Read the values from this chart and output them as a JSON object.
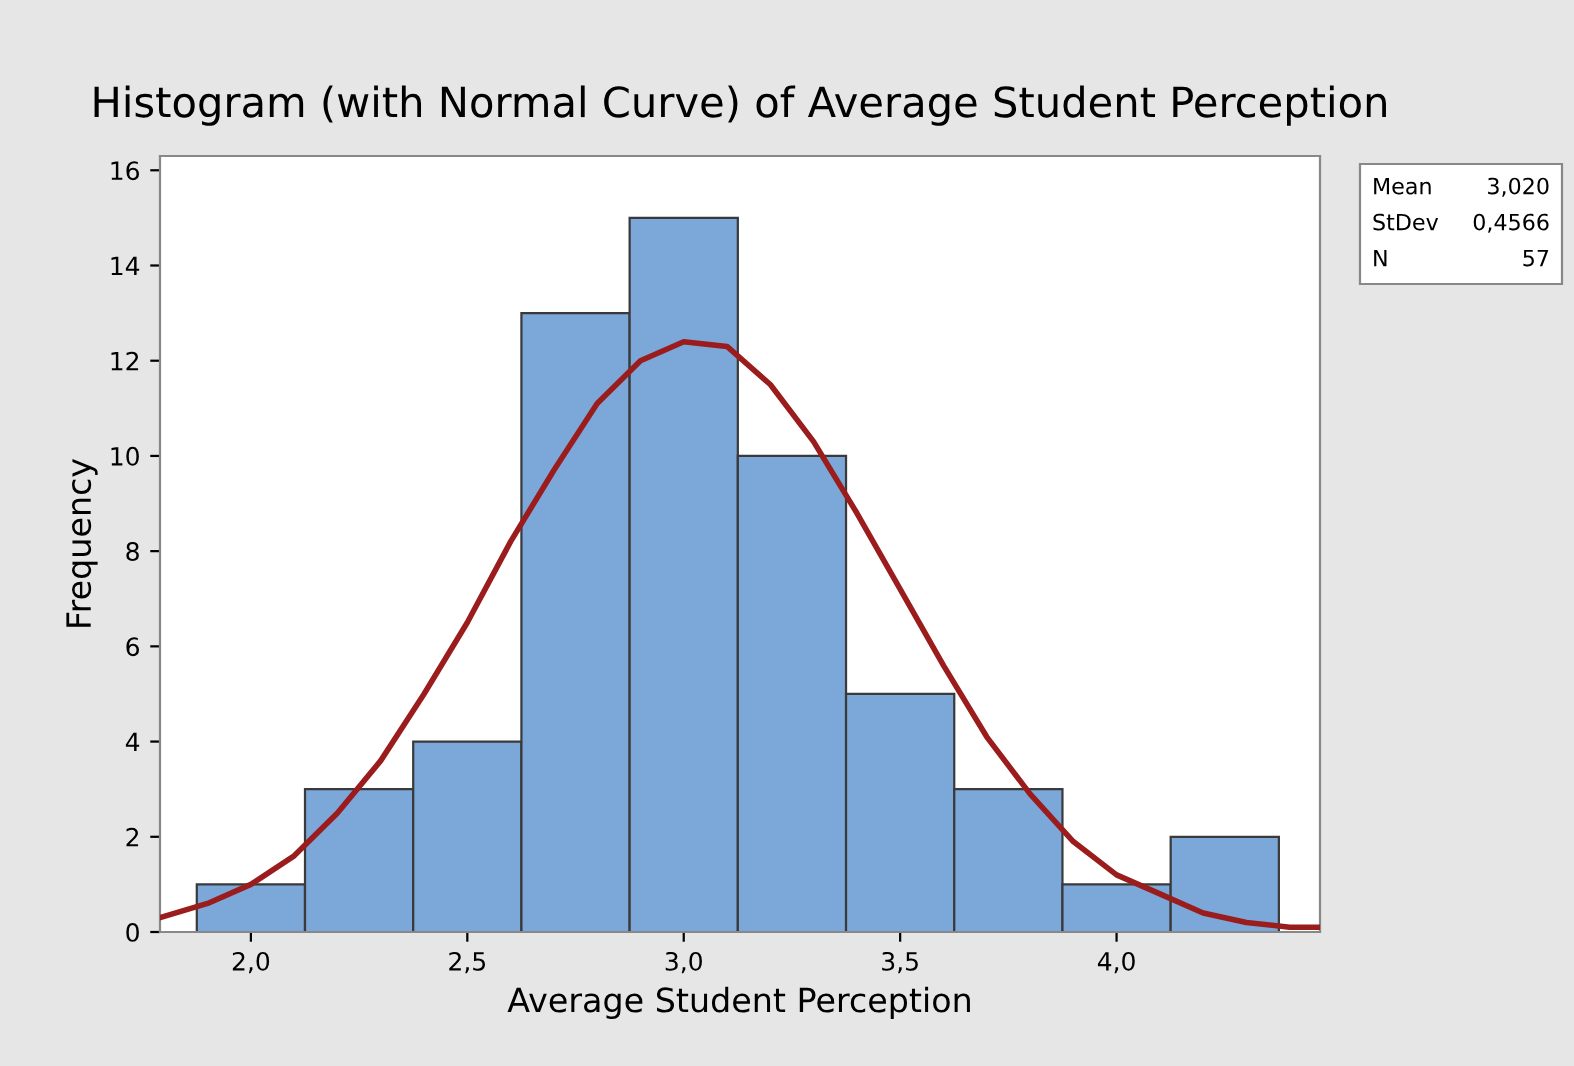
{
  "chart_data": {
    "type": "histogram",
    "title": "Histogram (with Normal Curve) of Average Student Perception",
    "xlabel": "Average Student Perception",
    "ylabel": "Frequency",
    "bins": [
      1.875,
      2.125,
      2.375,
      2.625,
      2.875,
      3.125,
      3.375,
      3.625,
      3.875,
      4.125,
      4.375
    ],
    "values": [
      1,
      3,
      4,
      13,
      15,
      10,
      5,
      3,
      1,
      2
    ],
    "color": "#7ba7d9",
    "series": [
      {
        "type": "line",
        "color": "#9b1c1c",
        "x": [
          1.79,
          1.9,
          2.0,
          2.1,
          2.2,
          2.3,
          2.4,
          2.5,
          2.6,
          2.7,
          2.8,
          2.9,
          3.0,
          3.1,
          3.2,
          3.3,
          3.4,
          3.5,
          3.6,
          3.7,
          3.8,
          3.9,
          4.0,
          4.1,
          4.2,
          4.3,
          4.4,
          4.47
        ],
        "values": [
          0.3,
          0.6,
          1.0,
          1.6,
          2.5,
          3.6,
          5.0,
          6.5,
          8.2,
          9.7,
          11.1,
          12.0,
          12.4,
          12.3,
          11.5,
          10.3,
          8.8,
          7.2,
          5.6,
          4.1,
          2.9,
          1.9,
          1.2,
          0.8,
          0.4,
          0.2,
          0.1,
          0.1
        ]
      }
    ],
    "xlim": [
      1.79,
      4.47
    ],
    "ylim": [
      0,
      16.3
    ],
    "xticks": [
      {
        "value": 2.0,
        "label": "2,0"
      },
      {
        "value": 2.5,
        "label": "2,5"
      },
      {
        "value": 3.0,
        "label": "3,0"
      },
      {
        "value": 3.5,
        "label": "3,5"
      },
      {
        "value": 4.0,
        "label": "4,0"
      }
    ],
    "yticks": [
      0,
      2,
      4,
      6,
      8,
      10,
      12,
      14,
      16
    ],
    "grid": false,
    "annotations": [
      "Mean 3,020",
      "StDev 0,4566",
      "N 57"
    ]
  }
}
